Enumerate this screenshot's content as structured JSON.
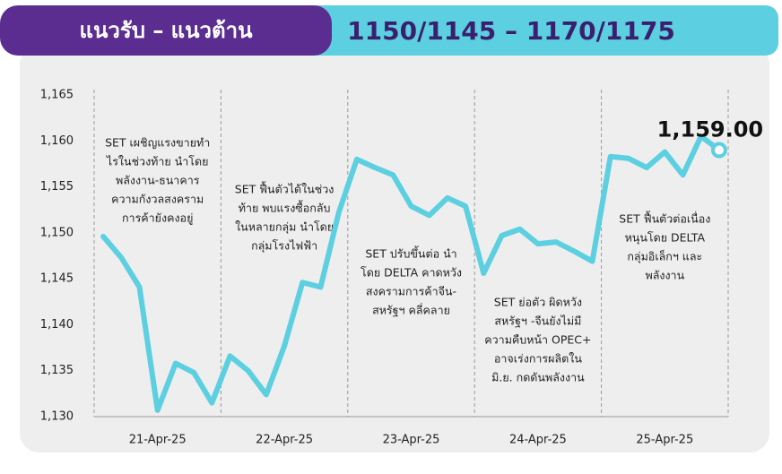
{
  "header": {
    "title": "แนวรับ – แนวต้าน",
    "levels": "1150/1145 – 1170/1175"
  },
  "chart_data": {
    "type": "line",
    "categories": [
      null,
      null,
      null,
      "21-Apr-25",
      null,
      null,
      null,
      null,
      null,
      null,
      "22-Apr-25",
      null,
      null,
      null,
      null,
      null,
      null,
      "23-Apr-25",
      null,
      null,
      null,
      null,
      null,
      null,
      "24-Apr-25",
      null,
      null,
      null,
      null,
      null,
      null,
      "25-Apr-25",
      null,
      null,
      null
    ],
    "series": [
      {
        "color": "#5ccfe0",
        "values": [
          1149.6,
          1147.3,
          1144.1,
          1130.7,
          1135.8,
          1134.8,
          1131.5,
          1136.6,
          1135.0,
          1132.4,
          1137.7,
          1144.6,
          1144.1,
          1152.2,
          1158.0,
          1157.1,
          1156.3,
          1152.9,
          1151.9,
          1153.8,
          1152.9,
          1145.6,
          1149.7,
          1150.4,
          1148.8,
          1149.0,
          1148.0,
          1146.9,
          1158.3,
          1158.1,
          1157.1,
          1158.8,
          1156.3,
          1160.5,
          1159.0
        ],
        "value_labels": [
          null,
          null,
          null,
          null,
          null,
          null,
          null,
          null,
          null,
          null,
          null,
          null,
          null,
          null,
          null,
          null,
          null,
          null,
          null,
          null,
          null,
          null,
          null,
          null,
          null,
          null,
          null,
          null,
          null,
          null,
          null,
          null,
          null,
          null,
          "1,159.00"
        ]
      }
    ],
    "ylim": [
      1130,
      1165
    ],
    "yticks": [
      {
        "value": 1130,
        "label": "1,130"
      },
      {
        "value": 1135,
        "label": "1,135"
      },
      {
        "value": 1140,
        "label": "1,140"
      },
      {
        "value": 1145,
        "label": "1,145"
      },
      {
        "value": 1150,
        "label": "1,150"
      },
      {
        "value": 1155,
        "label": "1,155"
      },
      {
        "value": 1160,
        "label": "1,160"
      },
      {
        "value": 1165,
        "label": "1,165"
      }
    ],
    "annotations": [
      [
        "SET เผชิญแรงขายทำ",
        "ไรในช่วงท้าย นำโดย",
        "พลังงาน-ธนาคาร",
        "ความกังวลสงคราม",
        "การค้ายังคงอยู่"
      ],
      [
        "SET ฟื้นตัวได้ในช่วง",
        "ท้าย พบแรงซื้อกลับ",
        "ในหลายกลุ่ม นำโดย",
        "กลุ่มโรงไฟฟ้า"
      ],
      [
        "SET ปรับขึ้นต่อ นำ",
        "โดย DELTA คาดหวัง",
        "สงครามการค้าจีน-",
        "สหรัฐฯ คลี่คลาย"
      ],
      [
        "SET ย่อตัว ผิดหวัง",
        "สหรัฐฯ -จีนยังไม่มี",
        "ความคืบหน้า OPEC+",
        "อาจเร่งการผลิตใน",
        "มิ.ย. กดดันพลังงาน"
      ],
      [
        "SET ฟื้นตัวต่อเนื่อง",
        "หนุนโดย DELTA",
        "กลุ่มอิเล็กฯ และ",
        "พลังงาน"
      ]
    ]
  }
}
